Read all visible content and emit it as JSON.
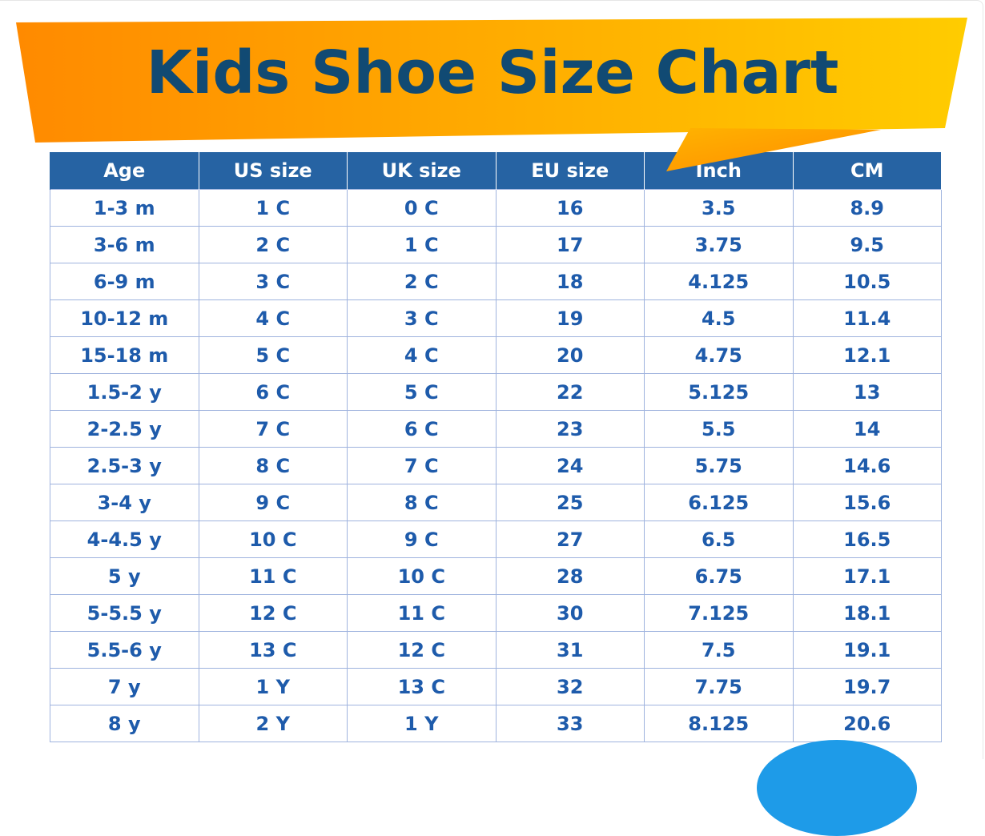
{
  "title": "Kids Shoe Size Chart",
  "colors": {
    "title": "#114a73",
    "banner_left": "#ff8a00",
    "banner_right": "#ffcc00",
    "header_bg": "#2663a3",
    "cell_text": "#1e5bab",
    "grid": "#9fb3de",
    "corner_circle": "#1e9be8"
  },
  "table": {
    "headers": [
      "Age",
      "US size",
      "UK size",
      "EU size",
      "Inch",
      "CM"
    ],
    "rows": [
      [
        "1-3 m",
        "1 C",
        "0 C",
        "16",
        "3.5",
        "8.9"
      ],
      [
        "3-6 m",
        "2 C",
        "1 C",
        "17",
        "3.75",
        "9.5"
      ],
      [
        "6-9 m",
        "3 C",
        "2 C",
        "18",
        "4.125",
        "10.5"
      ],
      [
        "10-12 m",
        "4 C",
        "3 C",
        "19",
        "4.5",
        "11.4"
      ],
      [
        "15-18 m",
        "5 C",
        "4 C",
        "20",
        "4.75",
        "12.1"
      ],
      [
        "1.5-2 y",
        "6 C",
        "5 C",
        "22",
        "5.125",
        "13"
      ],
      [
        "2-2.5 y",
        "7 C",
        "6 C",
        "23",
        "5.5",
        "14"
      ],
      [
        "2.5-3 y",
        "8 C",
        "7 C",
        "24",
        "5.75",
        "14.6"
      ],
      [
        "3-4 y",
        "9 C",
        "8 C",
        "25",
        "6.125",
        "15.6"
      ],
      [
        "4-4.5 y",
        "10 C",
        "9 C",
        "27",
        "6.5",
        "16.5"
      ],
      [
        "5 y",
        "11 C",
        "10 C",
        "28",
        "6.75",
        "17.1"
      ],
      [
        "5-5.5 y",
        "12 C",
        "11 C",
        "30",
        "7.125",
        "18.1"
      ],
      [
        "5.5-6 y",
        "13 C",
        "12 C",
        "31",
        "7.5",
        "19.1"
      ],
      [
        "7 y",
        "1 Y",
        "13 C",
        "32",
        "7.75",
        "19.7"
      ],
      [
        "8 y",
        "2 Y",
        "1 Y",
        "33",
        "8.125",
        "20.6"
      ]
    ]
  }
}
